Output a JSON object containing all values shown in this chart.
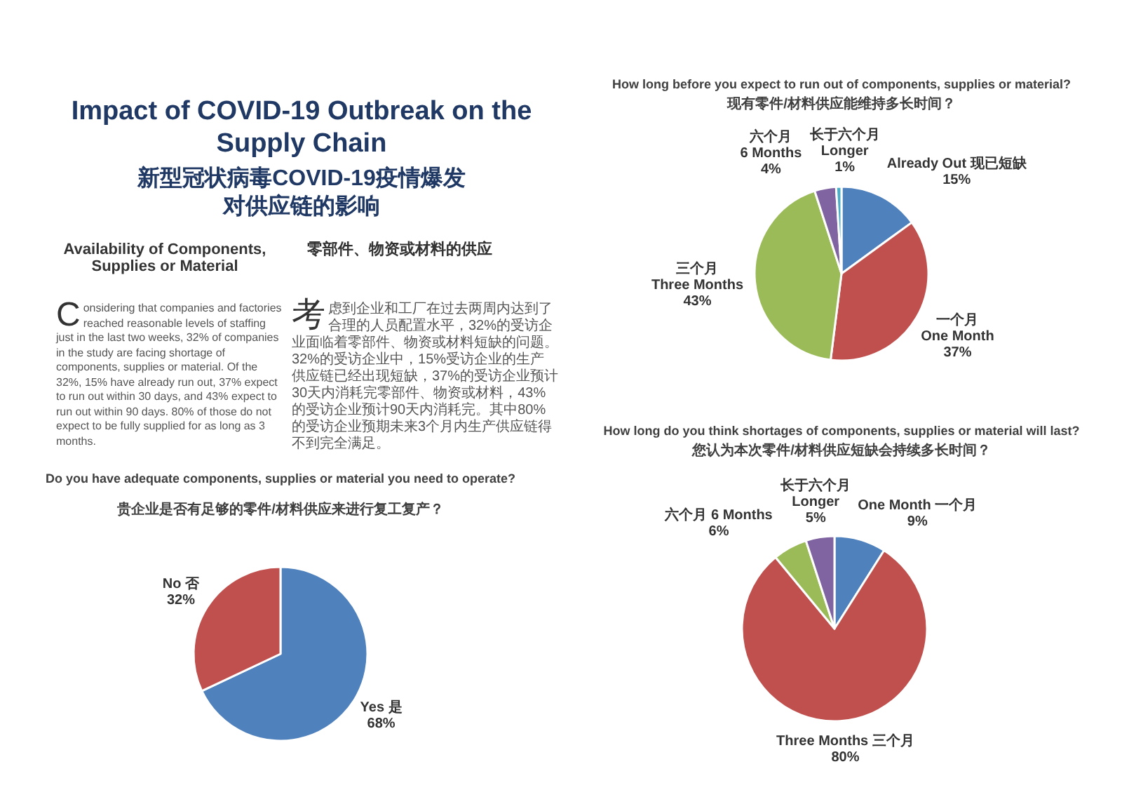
{
  "chart_data": [
    {
      "type": "other",
      "title": "Impact of COVID-19 Outbreak on the\nSupply Chain",
      "subtitle": "新型冠状病毒COVID-19疫情爆发对供应链的影响",
      "annotations": [
        "Availability of Components,\nSupplies or Material",
        "零部件、物资或材料的供应",
        "Considering that companies and factories reached reasonable levels of staffing just in the last two weeks, 32% of companies in the study are facing shortage of components, supplies or material. Of the 32%, 15% have already run out, 37% expect to run out within 30 days, and 43% expect to run out within 90 days. 80% of those do not expect to be fully supplied for as long as 3 months.",
        "考虑到企业和工厂在过去两周内达到了合理的人员配置水平，32%的受访企业面临着零部件、物资或材料短缺的问题。32%的受访企业中，15%受访企业的生产供应链已经出现短缺，37%的受访企业预计30天内消耗完零部件、物资或材料，43%的受访企业预计90天内消耗完。其中80%的受访企业预期未来3个月内生产供应链得不到完全满足。"
      ]
    },
    {
      "type": "pie",
      "title": "Do you have adequate components, supplies or material you need to operate?",
      "subtitle": "贵企业是否有足够的零件/材料供应来进行复工复产？",
      "categories": [
        "Yes 是",
        "No 否"
      ],
      "values": [
        68,
        32
      ],
      "colors": [
        "#4f81bd",
        "#c0504d"
      ],
      "value_labels": [
        "68%",
        "32%"
      ]
    },
    {
      "type": "pie",
      "title": "How long before you expect to run out of components, supplies or material?",
      "subtitle": "现有零件/材料供应能维持多长时间？",
      "categories": [
        "Already Out 现已短缺",
        "一个月\nOne Month",
        "三个月\nThree Months",
        "六个月\n6 Months",
        "长于六个月\nLonger"
      ],
      "values": [
        15,
        37,
        43,
        4,
        1
      ],
      "colors": [
        "#4f81bd",
        "#c0504d",
        "#9bbb59",
        "#8064a2",
        "#4bacc6"
      ],
      "value_labels": [
        "15%",
        "37%",
        "43%",
        "4%",
        "1%"
      ]
    },
    {
      "type": "pie",
      "title": "How long do you think shortages of components, supplies or material will last?",
      "subtitle": "您认为本次零件/材料供应短缺会持续多长时间？",
      "categories": [
        "One Month 一个月",
        "Three Months 三个月",
        "六个月 6 Months",
        "长于六个月\nLonger"
      ],
      "values": [
        9,
        80,
        6,
        5
      ],
      "colors": [
        "#4f81bd",
        "#c0504d",
        "#9bbb59",
        "#8064a2"
      ],
      "value_labels": [
        "9%",
        "80%",
        "6%",
        "5%"
      ]
    }
  ]
}
